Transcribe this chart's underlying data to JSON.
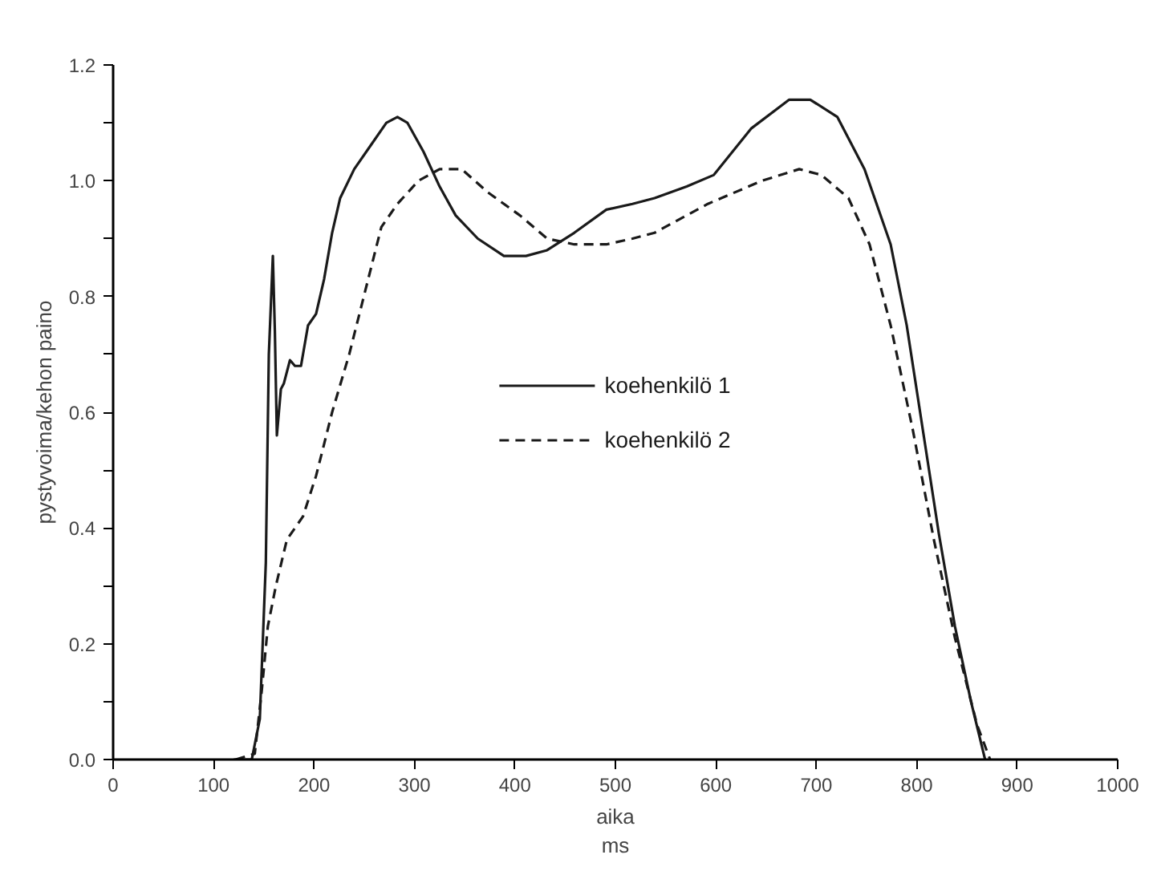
{
  "chart_data": {
    "type": "line",
    "xlabel": "aika\nms",
    "ylabel": "pystyvoima/kehon paino",
    "xlim": [
      0,
      1000
    ],
    "ylim": [
      0,
      1.2
    ],
    "xticks": [
      0,
      100,
      200,
      300,
      400,
      500,
      600,
      700,
      800,
      900,
      1000
    ],
    "yticks": [
      {
        "value": 0,
        "label": "0.0"
      },
      {
        "value": 0.1,
        "label": null
      },
      {
        "value": 0.2,
        "label": "0.2"
      },
      {
        "value": 0.3,
        "label": null
      },
      {
        "value": 0.4,
        "label": "0.4"
      },
      {
        "value": 0.5,
        "label": null
      },
      {
        "value": 0.6,
        "label": "0.6"
      },
      {
        "value": 0.7,
        "label": null
      },
      {
        "value": 0.8,
        "label": "0.8"
      },
      {
        "value": 0.9,
        "label": null
      },
      {
        "value": 1.0,
        "label": "1.0"
      },
      {
        "value": 1.1,
        "label": null
      },
      {
        "value": 1.2,
        "label": "1.2"
      }
    ],
    "grid": false,
    "legend": "center",
    "marker": "none",
    "series": [
      {
        "name": "koehenkilö 1",
        "color": "#1a1a1a",
        "line_style": "solid",
        "x": [
          120,
          138,
          146,
          152,
          155,
          159,
          161,
          163,
          167,
          170,
          176,
          181,
          187,
          194,
          202,
          210,
          218,
          226,
          240,
          256,
          272,
          283,
          293,
          309,
          325,
          341,
          363,
          389,
          411,
          432,
          459,
          491,
          517,
          539,
          571,
          598,
          635,
          673,
          694,
          721,
          748,
          774,
          790,
          806,
          822,
          838,
          854,
          868
        ],
        "values": [
          0,
          0,
          0.07,
          0.34,
          0.7,
          0.87,
          0.74,
          0.56,
          0.64,
          0.65,
          0.69,
          0.68,
          0.68,
          0.75,
          0.77,
          0.83,
          0.91,
          0.97,
          1.02,
          1.06,
          1.1,
          1.11,
          1.1,
          1.05,
          0.99,
          0.94,
          0.9,
          0.87,
          0.87,
          0.88,
          0.91,
          0.95,
          0.96,
          0.97,
          0.99,
          1.01,
          1.09,
          1.14,
          1.14,
          1.11,
          1.02,
          0.89,
          0.75,
          0.57,
          0.39,
          0.23,
          0.1,
          0
        ]
      },
      {
        "name": "koehenkilö 2",
        "color": "#1a1a1a",
        "line_style": "dashed",
        "x": [
          122,
          141,
          148,
          154,
          162,
          173,
          189,
          202,
          218,
          235,
          251,
          267,
          283,
          304,
          325,
          347,
          373,
          405,
          432,
          459,
          491,
          517,
          539,
          592,
          646,
          683,
          705,
          732,
          753,
          774,
          796,
          817,
          838,
          860,
          873
        ],
        "values": [
          0,
          0.01,
          0.12,
          0.23,
          0.3,
          0.38,
          0.42,
          0.49,
          0.6,
          0.7,
          0.81,
          0.92,
          0.96,
          1.0,
          1.02,
          1.02,
          0.98,
          0.94,
          0.9,
          0.89,
          0.89,
          0.9,
          0.91,
          0.96,
          1.0,
          1.02,
          1.01,
          0.97,
          0.89,
          0.75,
          0.57,
          0.38,
          0.21,
          0.06,
          0
        ]
      }
    ]
  }
}
